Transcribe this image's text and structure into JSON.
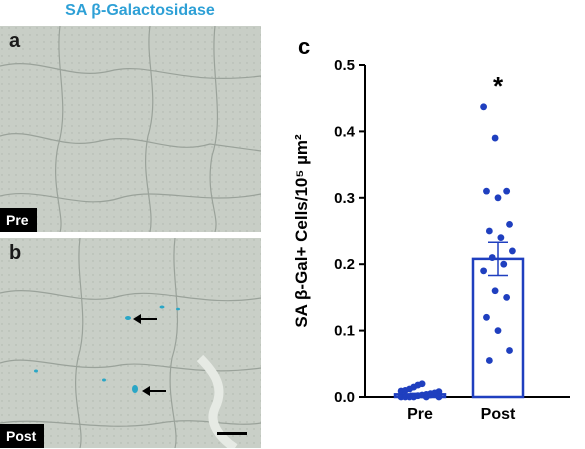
{
  "figure_title": "SA β-Galactosidase",
  "panel_a": {
    "letter": "a",
    "tag": "Pre"
  },
  "panel_b": {
    "letter": "b",
    "tag": "Post"
  },
  "chart_letter": "c",
  "colors": {
    "title": "#2ea0d6",
    "points": "#1f3fbf",
    "bar_outline": "#1f3fbf",
    "stain": "#2aa6c6"
  },
  "icons": [
    "left-arrow-icon",
    "scale-bar"
  ],
  "chart_data": {
    "type": "bar",
    "categories": [
      "Pre",
      "Post"
    ],
    "values": [
      0.004,
      0.208
    ],
    "sem": [
      0.0015,
      0.025
    ],
    "points": {
      "Pre": [
        0.0,
        0.0,
        0.0,
        0.0,
        0.002,
        0.003,
        0.004,
        0.005,
        0.006,
        0.008,
        0.009,
        0.01,
        0.012,
        0.015,
        0.018,
        0.02,
        0.0,
        0.003,
        0.006,
        0.0
      ],
      "Post": [
        0.437,
        0.39,
        0.31,
        0.31,
        0.3,
        0.26,
        0.25,
        0.24,
        0.22,
        0.21,
        0.2,
        0.19,
        0.16,
        0.15,
        0.12,
        0.1,
        0.07,
        0.055
      ]
    },
    "significance_marker": "*",
    "ylabel": "SA β-Gal+ Cells/10⁵ µm²",
    "xlabel": "",
    "ylim": [
      0.0,
      0.5
    ],
    "yticks": [
      "0.0",
      "0.1",
      "0.2",
      "0.3",
      "0.4",
      "0.5"
    ]
  }
}
